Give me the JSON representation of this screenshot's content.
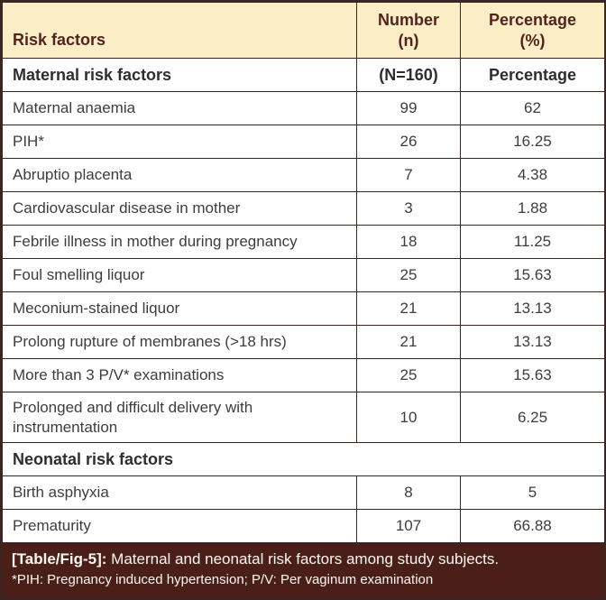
{
  "colors": {
    "header_bg": "#fbeec7",
    "header_text": "#53241f",
    "body_text": "#3d3d3d",
    "grid_line": "#3b2523",
    "caption_bg": "#4a1f1a",
    "caption_text": "#fbf6f0"
  },
  "header": {
    "col1": "Risk factors",
    "col2_line1": "Number",
    "col2_line2": "(n)",
    "col3_line1": "Percentage",
    "col3_line2": "(%)"
  },
  "table": {
    "rows": [
      {
        "type": "subheader",
        "label": "Maternal risk factors",
        "n": "(N=160)",
        "pct": "Percentage"
      },
      {
        "type": "data",
        "label": "Maternal anaemia",
        "n": "99",
        "pct": "62"
      },
      {
        "type": "data",
        "label": "PIH*",
        "n": "26",
        "pct": "16.25"
      },
      {
        "type": "data",
        "label": "Abruptio placenta",
        "n": "7",
        "pct": "4.38"
      },
      {
        "type": "data",
        "label": "Cardiovascular disease in mother",
        "n": "3",
        "pct": "1.88"
      },
      {
        "type": "data",
        "label": "Febrile illness in mother during pregnancy",
        "n": "18",
        "pct": "11.25"
      },
      {
        "type": "data",
        "label": "Foul smelling liquor",
        "n": "25",
        "pct": "15.63"
      },
      {
        "type": "data",
        "label": "Meconium-stained liquor",
        "n": "21",
        "pct": "13.13"
      },
      {
        "type": "data",
        "label": "Prolong rupture of membranes (>18 hrs)",
        "n": "21",
        "pct": "13.13"
      },
      {
        "type": "data",
        "label": "More than 3 P/V* examinations",
        "n": "25",
        "pct": "15.63"
      },
      {
        "type": "data",
        "tall": true,
        "label": "Prolonged and difficult delivery with instrumentation",
        "n": "10",
        "pct": "6.25"
      },
      {
        "type": "section",
        "label": "Neonatal risk factors"
      },
      {
        "type": "data",
        "label": "Birth asphyxia",
        "n": "8",
        "pct": "5"
      },
      {
        "type": "data",
        "label": "Prematurity",
        "n": "107",
        "pct": "66.88"
      }
    ]
  },
  "caption": {
    "tag": "[Table/Fig-5]:",
    "text": " Maternal and neonatal risk factors among study subjects.",
    "footnote": "*PIH: Pregnancy induced hypertension; P/V: Per vaginum examination"
  }
}
